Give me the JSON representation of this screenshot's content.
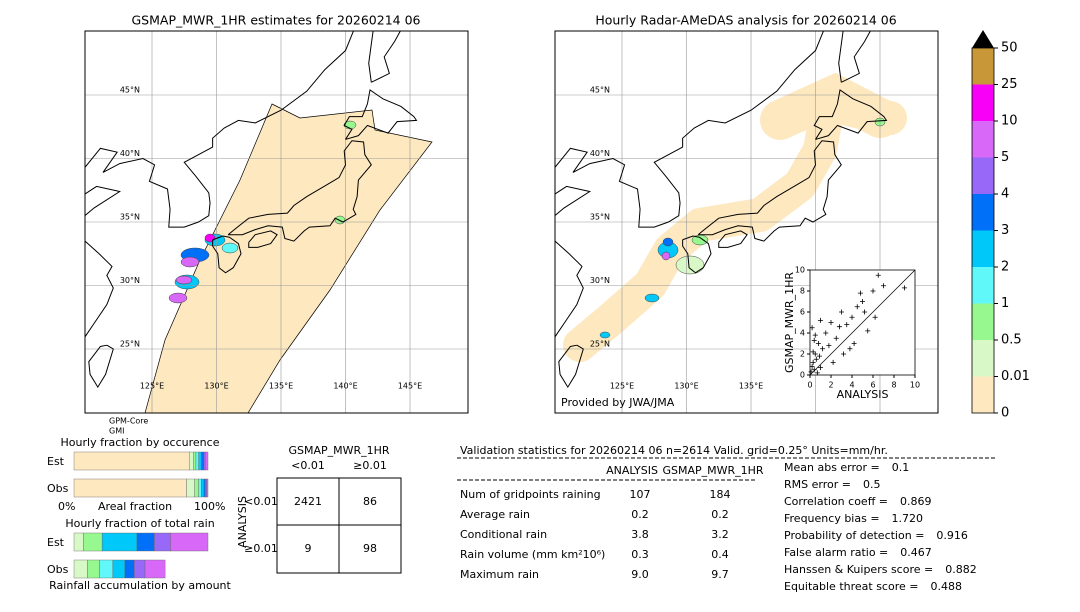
{
  "left_map": {
    "title": "GSMAP_MWR_1HR estimates for 20260214 06",
    "lat_labels": [
      "45°N",
      "40°N",
      "35°N",
      "30°N",
      "25°N"
    ],
    "lon_labels": [
      "125°E",
      "130°E",
      "135°E",
      "140°E",
      "145°E"
    ],
    "sensor_labels": [
      "GPM-Core",
      "GMI"
    ]
  },
  "right_map": {
    "title": "Hourly Radar-AMeDAS analysis for 20260214 06",
    "lat_labels": [
      "45°N",
      "40°N",
      "35°N",
      "30°N",
      "25°N"
    ],
    "lon_labels": [
      "125°E",
      "130°E",
      "135°E"
    ],
    "credit": "Provided by JWA/JMA"
  },
  "colorbar": {
    "ticks": [
      0,
      0.01,
      0.5,
      1,
      2,
      3,
      4,
      5,
      10,
      25,
      50
    ],
    "colors": [
      "#fde8c0",
      "#d8f8c8",
      "#98f890",
      "#60f8f8",
      "#00c8f8",
      "#0070f8",
      "#9868f8",
      "#d868f8",
      "#f800f8",
      "#c89838"
    ],
    "extend_color": "#000000"
  },
  "chart_data": {
    "type": "scatter",
    "xlabel": "ANALYSIS",
    "ylabel": "GSMAP_MWR_1HR",
    "xlim": [
      0,
      10
    ],
    "ylim": [
      0,
      10
    ],
    "xticks": [
      0,
      2,
      4,
      6,
      8,
      10
    ],
    "yticks": [
      0,
      2,
      4,
      6,
      8,
      10
    ],
    "x": [
      0.1,
      0.2,
      0.3,
      0.4,
      0.5,
      0.6,
      0.8,
      1.0,
      1.2,
      0.2,
      0.5,
      0.9,
      1.5,
      1.8,
      2.0,
      2.5,
      3.0,
      3.2,
      3.5,
      4.0,
      4.2,
      4.5,
      5.0,
      5.5,
      6.0,
      6.5,
      7.0,
      6.2,
      3.8,
      2.2,
      1.0,
      0.3,
      0.7,
      0.4,
      9.0,
      5.2,
      4.8,
      2.8
    ],
    "y": [
      0.3,
      0.8,
      1.2,
      0.5,
      2.0,
      1.5,
      3.0,
      0.7,
      2.5,
      4.5,
      3.8,
      1.8,
      4.0,
      2.8,
      5.0,
      3.5,
      6.0,
      2.0,
      4.8,
      5.5,
      3.0,
      6.5,
      7.0,
      4.2,
      8.0,
      9.5,
      8.5,
      5.5,
      2.5,
      1.2,
      5.2,
      2.2,
      0.2,
      3.3,
      8.3,
      6.0,
      7.8,
      4.6
    ],
    "color": "#000000"
  },
  "occurrence": {
    "title": "Hourly fraction by occurence",
    "rows": [
      "Est",
      "Obs"
    ],
    "axis_labels": [
      "0%",
      "Areal fraction",
      "100%"
    ],
    "est": [
      86,
      3,
      2,
      2,
      2,
      2,
      1,
      2
    ],
    "obs": [
      84,
      6,
      3,
      2,
      2,
      1,
      1,
      1
    ],
    "colors": [
      "#fde8c0",
      "#d8f8c8",
      "#98f890",
      "#60f8f8",
      "#00c8f8",
      "#0070f8",
      "#9868f8",
      "#d868f8"
    ]
  },
  "total_rain": {
    "title": "Hourly fraction of total rain",
    "rows": [
      "Est",
      "Obs"
    ],
    "footer": "Rainfall accumulation by amount",
    "est": [
      7,
      14,
      26,
      13,
      12,
      28
    ],
    "est_colors": [
      "#d8f8c8",
      "#98f890",
      "#00c8f8",
      "#0070f8",
      "#9868f8",
      "#d868f8"
    ],
    "obs": [
      10,
      9,
      10,
      9,
      7,
      8,
      15
    ],
    "obs_colors": [
      "#d8f8c8",
      "#98f890",
      "#60f8f8",
      "#00c8f8",
      "#0070f8",
      "#9868f8",
      "#d868f8"
    ]
  },
  "contingency": {
    "title": "GSMAP_MWR_1HR",
    "col_headers": [
      "<0.01",
      "≥0.01"
    ],
    "row_title": "ANALYSIS",
    "row_headers": [
      "<0.01",
      "≥0.01"
    ],
    "cells": [
      [
        "2421",
        "86"
      ],
      [
        "9",
        "98"
      ]
    ]
  },
  "validation": {
    "header": "Validation statistics for 20260214 06  n=2614 Valid. grid=0.25° Units=mm/hr.",
    "columns": [
      "ANALYSIS",
      "GSMAP_MWR_1HR"
    ],
    "rows": [
      [
        "Num of gridpoints raining",
        "107",
        "184"
      ],
      [
        "Average rain",
        "0.2",
        "0.2"
      ],
      [
        "Conditional rain",
        "3.8",
        "3.2"
      ],
      [
        "Rain volume (mm km²10⁶)",
        "0.3",
        "0.4"
      ],
      [
        "Maximum rain",
        "9.0",
        "9.7"
      ]
    ],
    "scores": [
      [
        "Mean abs error =",
        "0.1"
      ],
      [
        "RMS error =",
        "0.5"
      ],
      [
        "Correlation coeff =",
        "0.869"
      ],
      [
        "Frequency bias =",
        "1.720"
      ],
      [
        "Probability of detection =",
        "0.916"
      ],
      [
        "False alarm ratio =",
        "0.467"
      ],
      [
        "Hanssen & Kuipers score =",
        "0.882"
      ],
      [
        "Equitable threat score =",
        "0.488"
      ]
    ]
  }
}
